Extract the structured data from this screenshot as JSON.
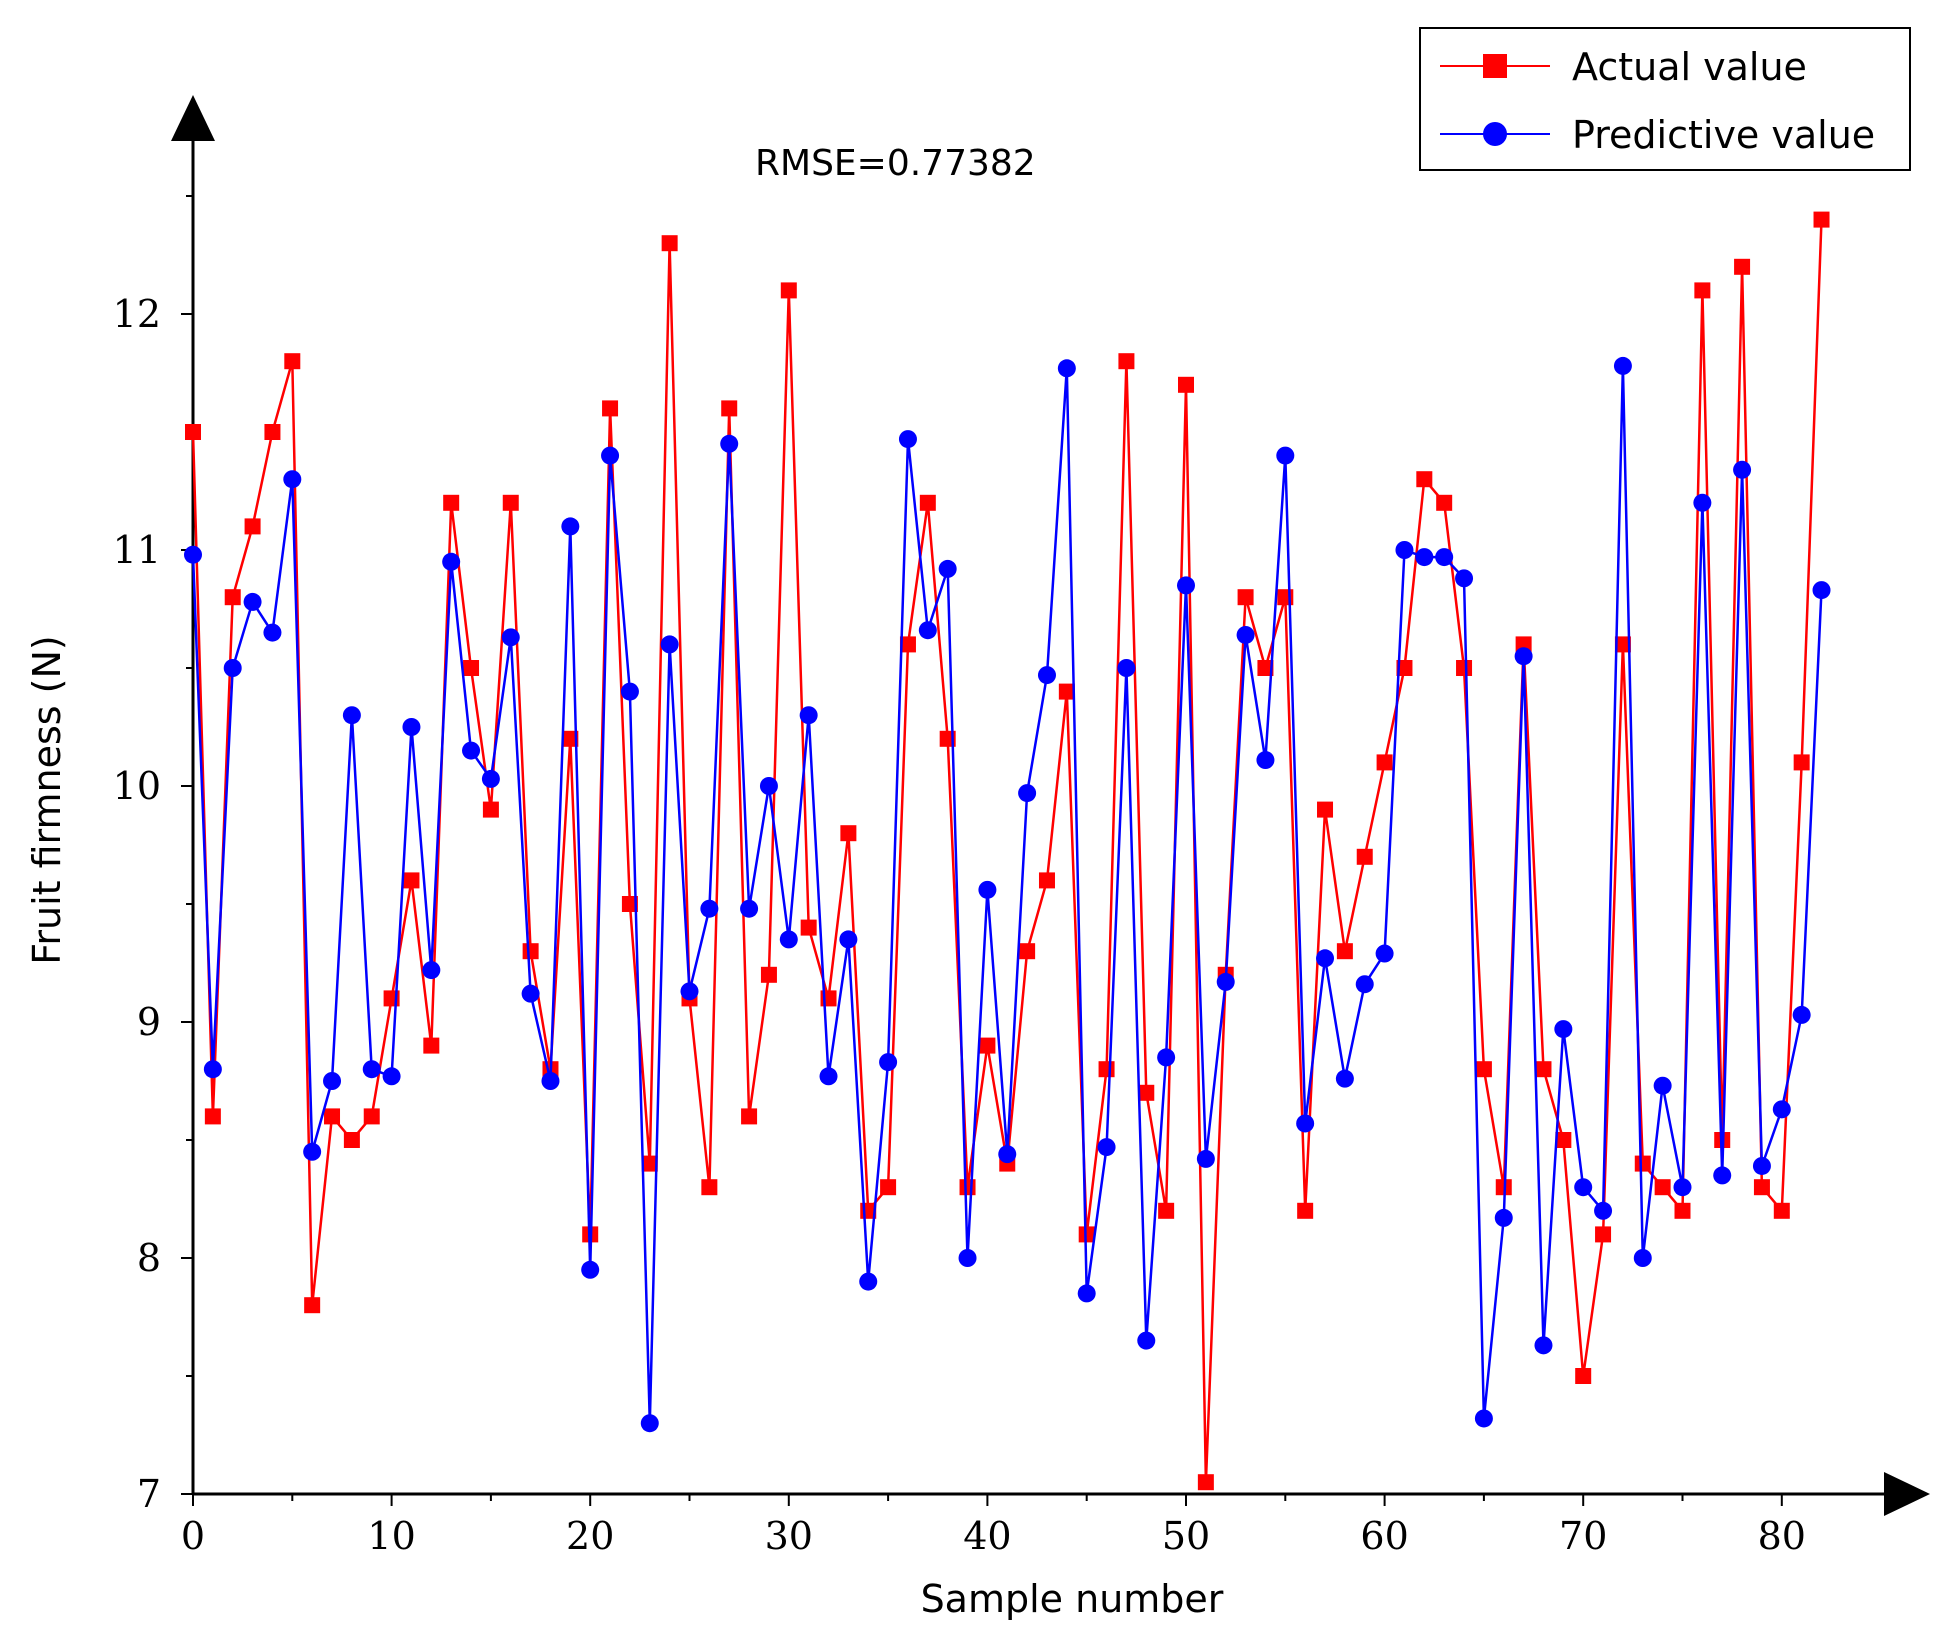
{
  "chart_data": {
    "type": "line",
    "title": "",
    "annotation": "RMSE=0.77382",
    "xlabel": "Sample number",
    "ylabel": "Fruit firmness (N)",
    "xlim": [
      0,
      84
    ],
    "ylim": [
      7,
      12.5
    ],
    "xticks": [
      0,
      10,
      20,
      30,
      40,
      50,
      60,
      70,
      80
    ],
    "yticks": [
      7,
      8,
      9,
      10,
      11,
      12
    ],
    "legend_position": "top-right",
    "series": [
      {
        "name": "Actual value",
        "color": "#ff0000",
        "marker": "square",
        "values": [
          11.5,
          8.6,
          10.8,
          11.1,
          11.5,
          11.8,
          7.8,
          8.6,
          8.5,
          8.6,
          9.1,
          9.6,
          8.9,
          11.2,
          10.5,
          9.9,
          11.2,
          9.3,
          8.8,
          10.2,
          8.1,
          11.6,
          9.5,
          8.4,
          12.3,
          9.1,
          8.3,
          11.6,
          8.6,
          9.2,
          12.1,
          9.4,
          9.1,
          9.8,
          8.2,
          8.3,
          10.6,
          11.2,
          10.2,
          8.3,
          8.9,
          8.4,
          9.3,
          9.6,
          10.4,
          8.1,
          8.8,
          11.8,
          8.7,
          8.2,
          11.7,
          7.05,
          9.2,
          10.8,
          10.5,
          10.8,
          8.2,
          9.9,
          9.3,
          9.7,
          10.1,
          10.5,
          11.3,
          11.2,
          10.5,
          8.8,
          8.3,
          10.6,
          8.8,
          8.5,
          7.5,
          8.1,
          10.6,
          8.4,
          8.3,
          8.2,
          12.1,
          8.5,
          12.2,
          8.3,
          8.2,
          10.1,
          12.4
        ]
      },
      {
        "name": "Predictive value",
        "color": "#0000ff",
        "marker": "circle",
        "values": [
          10.98,
          8.8,
          10.5,
          10.78,
          10.65,
          11.3,
          8.45,
          8.75,
          10.3,
          8.8,
          8.77,
          10.25,
          9.22,
          10.95,
          10.15,
          10.03,
          10.63,
          9.12,
          8.75,
          11.1,
          7.95,
          11.4,
          10.4,
          7.3,
          10.6,
          9.13,
          9.48,
          11.45,
          9.48,
          10.0,
          9.35,
          10.3,
          8.77,
          9.35,
          7.9,
          8.83,
          11.47,
          10.66,
          10.92,
          8.0,
          9.56,
          8.44,
          9.97,
          10.47,
          11.77,
          7.85,
          8.47,
          10.5,
          7.65,
          8.85,
          10.85,
          8.42,
          9.17,
          10.64,
          10.11,
          11.4,
          8.57,
          9.27,
          8.76,
          9.16,
          9.29,
          11.0,
          10.97,
          10.97,
          10.88,
          7.32,
          8.17,
          10.55,
          7.63,
          8.97,
          8.3,
          8.2,
          11.78,
          8.0,
          8.73,
          8.3,
          11.2,
          8.35,
          11.34,
          8.39,
          8.63,
          9.03,
          10.83
        ]
      }
    ]
  }
}
